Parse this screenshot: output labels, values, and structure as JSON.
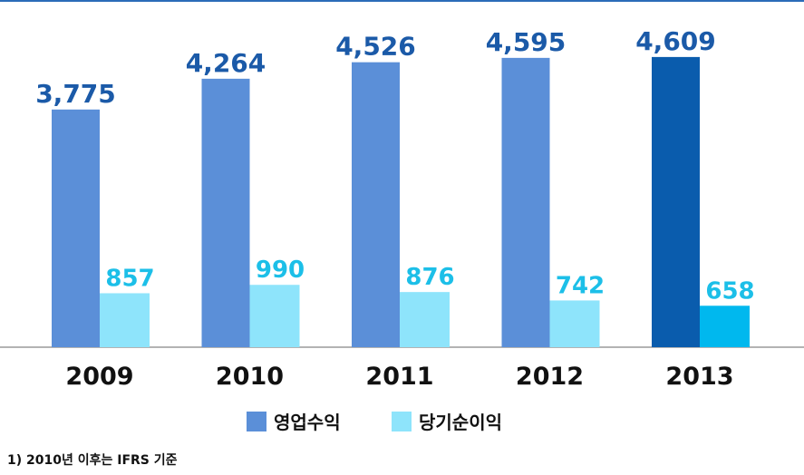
{
  "chart_data": {
    "type": "bar",
    "categories": [
      "2009",
      "2010",
      "2011",
      "2012",
      "2013"
    ],
    "series": [
      {
        "name": "영업수익",
        "color": "#5b8fd8",
        "label_color": "#1b5aa8",
        "colors": [
          "#5b8fd8",
          "#5b8fd8",
          "#5b8fd8",
          "#5b8fd8",
          "#0a5cad"
        ],
        "values": [
          3775,
          4264,
          4526,
          4595,
          4609
        ],
        "value_labels": [
          "3,775",
          "4,264",
          "4,526",
          "4,595",
          "4,609"
        ]
      },
      {
        "name": "당기순이익",
        "color": "#8ee4fb",
        "label_color": "#1cbfe8",
        "colors": [
          "#8ee4fb",
          "#8ee4fb",
          "#8ee4fb",
          "#8ee4fb",
          "#00b8ee"
        ],
        "values": [
          857,
          990,
          876,
          742,
          658
        ]
      }
    ],
    "ylim": [
      0,
      5500
    ],
    "footnote": "1) 2010년 이후는 IFRS 기준"
  }
}
